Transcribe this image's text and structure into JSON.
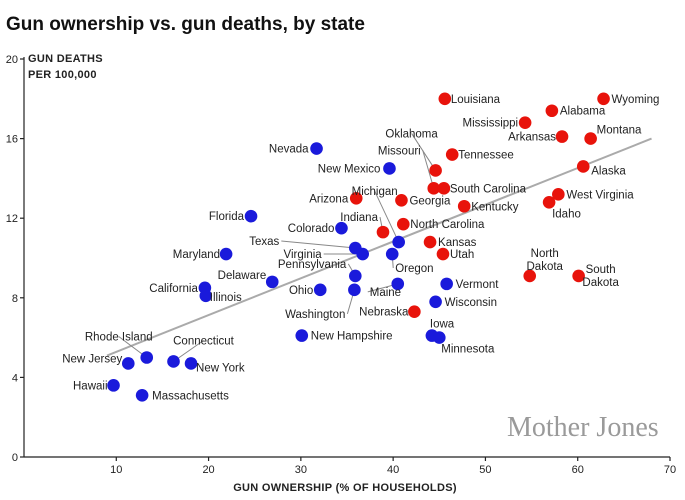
{
  "chart_data": {
    "type": "scatter",
    "title": "Gun ownership vs. gun deaths, by state",
    "ylabel_line1": "GUN DEATHS",
    "ylabel_line2": "PER 100,000",
    "xlabel": "GUN OWNERSHIP (% OF HOUSEHOLDS)",
    "xlim": [
      0,
      70
    ],
    "ylim": [
      0,
      20
    ],
    "xticks": [
      10,
      20,
      30,
      40,
      50,
      60,
      70
    ],
    "yticks": [
      0,
      4,
      8,
      12,
      16,
      20
    ],
    "colors": {
      "blue": "#1a1adb",
      "red": "#e8130b"
    },
    "trendline": {
      "x": [
        9,
        68
      ],
      "y": [
        5.1,
        16.0
      ]
    },
    "points": [
      {
        "label": "Hawaii",
        "x": 9.7,
        "y": 3.6,
        "color": "blue"
      },
      {
        "label": "Massachusetts",
        "x": 12.8,
        "y": 3.1,
        "color": "blue"
      },
      {
        "label": "New Jersey",
        "x": 11.3,
        "y": 4.7,
        "color": "blue"
      },
      {
        "label": "Rhode Island",
        "x": 13.3,
        "y": 5.0,
        "color": "blue"
      },
      {
        "label": "Connecticut",
        "x": 16.2,
        "y": 4.8,
        "color": "blue"
      },
      {
        "label": "New York",
        "x": 18.1,
        "y": 4.7,
        "color": "blue"
      },
      {
        "label": "California",
        "x": 19.6,
        "y": 8.5,
        "color": "blue"
      },
      {
        "label": "Illinois",
        "x": 19.7,
        "y": 8.1,
        "color": "blue"
      },
      {
        "label": "Maryland",
        "x": 21.9,
        "y": 10.2,
        "color": "blue"
      },
      {
        "label": "Delaware",
        "x": 26.9,
        "y": 8.8,
        "color": "blue"
      },
      {
        "label": "Florida",
        "x": 24.6,
        "y": 12.1,
        "color": "blue"
      },
      {
        "label": "Ohio",
        "x": 32.1,
        "y": 8.4,
        "color": "blue"
      },
      {
        "label": "New Hampshire",
        "x": 30.1,
        "y": 6.1,
        "color": "blue"
      },
      {
        "label": "Nevada",
        "x": 31.7,
        "y": 15.5,
        "color": "blue"
      },
      {
        "label": "Colorado",
        "x": 34.4,
        "y": 11.5,
        "color": "blue"
      },
      {
        "label": "Texas",
        "x": 35.9,
        "y": 10.5,
        "color": "blue"
      },
      {
        "label": "Virginia",
        "x": 36.7,
        "y": 10.2,
        "color": "blue"
      },
      {
        "label": "Pennsylvania",
        "x": 35.9,
        "y": 9.1,
        "color": "blue"
      },
      {
        "label": "Washington",
        "x": 35.8,
        "y": 8.4,
        "color": "blue"
      },
      {
        "label": "Michigan",
        "x": 40.6,
        "y": 10.8,
        "color": "blue"
      },
      {
        "label": "Oregon",
        "x": 39.9,
        "y": 10.2,
        "color": "blue"
      },
      {
        "label": "Maine",
        "x": 40.5,
        "y": 8.7,
        "color": "blue"
      },
      {
        "label": "New Mexico",
        "x": 39.6,
        "y": 14.5,
        "color": "blue"
      },
      {
        "label": "Vermont",
        "x": 45.8,
        "y": 8.7,
        "color": "blue"
      },
      {
        "label": "Wisconsin",
        "x": 44.6,
        "y": 7.8,
        "color": "blue"
      },
      {
        "label": "Iowa",
        "x": 44.2,
        "y": 6.1,
        "color": "blue"
      },
      {
        "label": "Minnesota",
        "x": 45.0,
        "y": 6.0,
        "color": "blue"
      },
      {
        "label": "Arizona",
        "x": 36.0,
        "y": 13.0,
        "color": "red"
      },
      {
        "label": "Indiana",
        "x": 38.9,
        "y": 11.3,
        "color": "red"
      },
      {
        "label": "Georgia",
        "x": 40.9,
        "y": 12.9,
        "color": "red"
      },
      {
        "label": "North Carolina",
        "x": 41.1,
        "y": 11.7,
        "color": "red"
      },
      {
        "label": "Kansas",
        "x": 44.0,
        "y": 10.8,
        "color": "red"
      },
      {
        "label": "Utah",
        "x": 45.4,
        "y": 10.2,
        "color": "red"
      },
      {
        "label": "Nebraska",
        "x": 42.3,
        "y": 7.3,
        "color": "red"
      },
      {
        "label": "Oklahoma",
        "x": 44.6,
        "y": 14.4,
        "color": "red"
      },
      {
        "label": "Missouri",
        "x": 44.4,
        "y": 13.5,
        "color": "red"
      },
      {
        "label": "South Carolina",
        "x": 45.5,
        "y": 13.5,
        "color": "red"
      },
      {
        "label": "Tennessee",
        "x": 46.4,
        "y": 15.2,
        "color": "red"
      },
      {
        "label": "Kentucky",
        "x": 47.7,
        "y": 12.6,
        "color": "red"
      },
      {
        "label": "Louisiana",
        "x": 45.6,
        "y": 18.0,
        "color": "red"
      },
      {
        "label": "Mississippi",
        "x": 54.3,
        "y": 16.8,
        "color": "red"
      },
      {
        "label": "Alabama",
        "x": 57.2,
        "y": 17.4,
        "color": "red"
      },
      {
        "label": "Wyoming",
        "x": 62.8,
        "y": 18.0,
        "color": "red"
      },
      {
        "label": "Arkansas",
        "x": 58.3,
        "y": 16.1,
        "color": "red"
      },
      {
        "label": "Montana",
        "x": 61.4,
        "y": 16.0,
        "color": "red"
      },
      {
        "label": "Alaska",
        "x": 60.6,
        "y": 14.6,
        "color": "red"
      },
      {
        "label": "West Virginia",
        "x": 57.9,
        "y": 13.2,
        "color": "red"
      },
      {
        "label": "Idaho",
        "x": 56.9,
        "y": 12.8,
        "color": "red"
      },
      {
        "label": "North Dakota",
        "x": 54.8,
        "y": 9.1,
        "color": "red"
      },
      {
        "label": "South Dakota",
        "x": 60.1,
        "y": 9.1,
        "color": "red"
      }
    ]
  },
  "watermark": "Mother Jones"
}
